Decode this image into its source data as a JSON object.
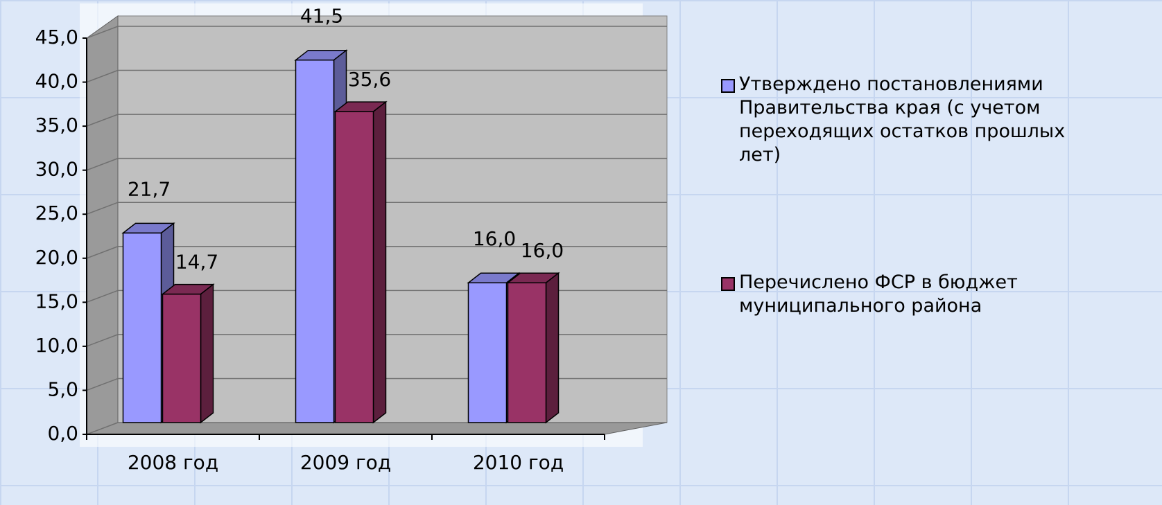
{
  "chart_data": {
    "type": "bar3d",
    "categories": [
      "2008 год",
      "2009 год",
      "2010 год"
    ],
    "series": [
      {
        "name": "Утверждено постановлениями Правительства края (с учетом переходящих остатков прошлых лет)",
        "color": "#9999ff",
        "values": [
          21.7,
          41.5,
          16.0
        ],
        "value_labels": [
          "21,7",
          "41,5",
          "16,0"
        ]
      },
      {
        "name": "Перечислено ФСР в бюджет муниципального района",
        "color": "#993366",
        "values": [
          14.7,
          35.6,
          16.0
        ],
        "value_labels": [
          "14,7",
          "35,6",
          "16,0"
        ]
      }
    ],
    "ylim": [
      0,
      45
    ],
    "yticks": [
      {
        "value": 0,
        "label": "0,0"
      },
      {
        "value": 5,
        "label": "5,0"
      },
      {
        "value": 10,
        "label": "10,0"
      },
      {
        "value": 15,
        "label": "15,0"
      },
      {
        "value": 20,
        "label": "20,0"
      },
      {
        "value": 25,
        "label": "25,0"
      },
      {
        "value": 30,
        "label": "30,0"
      },
      {
        "value": 35,
        "label": "35,0"
      },
      {
        "value": 40,
        "label": "40,0"
      },
      {
        "value": 45,
        "label": "45,0"
      }
    ],
    "grid": true,
    "legend": "right"
  }
}
